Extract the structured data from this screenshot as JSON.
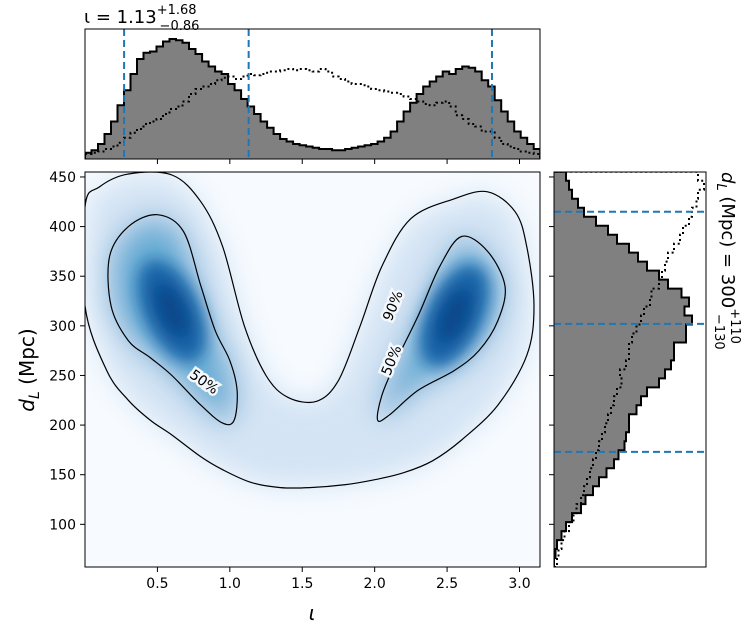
{
  "chart_data": [
    {
      "type": "heatmap",
      "panel": "joint",
      "xlabel": "ι",
      "ylabel": "d_L (Mpc)",
      "xlim": [
        0.0,
        3.14159
      ],
      "ylim": [
        57,
        455
      ],
      "xticks": [
        0.5,
        1.0,
        1.5,
        2.0,
        2.5,
        3.0
      ],
      "xtick_labels": [
        "0.5",
        "1.0",
        "1.5",
        "2.0",
        "2.5",
        "3.0"
      ],
      "yticks": [
        100,
        150,
        200,
        250,
        300,
        350,
        400,
        450
      ],
      "ytick_labels": [
        "100",
        "150",
        "200",
        "250",
        "300",
        "350",
        "400",
        "450"
      ],
      "colormap": "Blues",
      "density_peaks": [
        {
          "iota": 0.6,
          "dL": 315
        },
        {
          "iota": 2.55,
          "dL": 310
        }
      ],
      "contours": [
        {
          "level": "50%",
          "label": "50%",
          "region": "left",
          "points": [
            [
              0.17,
              370
            ],
            [
              0.3,
              400
            ],
            [
              0.5,
              412
            ],
            [
              0.68,
              395
            ],
            [
              0.8,
              340
            ],
            [
              0.9,
              295
            ],
            [
              1.0,
              265
            ],
            [
              1.05,
              235
            ],
            [
              1.03,
              205
            ],
            [
              0.95,
              202
            ],
            [
              0.8,
              220
            ],
            [
              0.6,
              250
            ],
            [
              0.45,
              268
            ],
            [
              0.3,
              285
            ],
            [
              0.18,
              320
            ]
          ]
        },
        {
          "level": "50%",
          "label": "50%",
          "region": "right",
          "points": [
            [
              2.02,
              205
            ],
            [
              2.1,
              210
            ],
            [
              2.3,
              235
            ],
            [
              2.55,
              255
            ],
            [
              2.72,
              275
            ],
            [
              2.85,
              305
            ],
            [
              2.9,
              340
            ],
            [
              2.78,
              375
            ],
            [
              2.6,
              390
            ],
            [
              2.45,
              360
            ],
            [
              2.3,
              310
            ],
            [
              2.15,
              265
            ],
            [
              2.05,
              230
            ]
          ]
        },
        {
          "level": "90%",
          "label": "90%",
          "region": "outer",
          "points": [
            [
              0.0,
              320
            ],
            [
              0.0,
              420
            ],
            [
              0.1,
              440
            ],
            [
              0.3,
              453
            ],
            [
              0.6,
              452
            ],
            [
              0.8,
              425
            ],
            [
              0.95,
              380
            ],
            [
              1.1,
              300
            ],
            [
              1.25,
              250
            ],
            [
              1.4,
              228
            ],
            [
              1.6,
              224
            ],
            [
              1.75,
              245
            ],
            [
              1.9,
              300
            ],
            [
              2.05,
              360
            ],
            [
              2.25,
              408
            ],
            [
              2.55,
              428
            ],
            [
              2.78,
              435
            ],
            [
              2.97,
              415
            ],
            [
              3.05,
              380
            ],
            [
              3.1,
              320
            ],
            [
              3.05,
              270
            ],
            [
              2.85,
              220
            ],
            [
              2.6,
              185
            ],
            [
              2.4,
              164
            ],
            [
              2.2,
              152
            ],
            [
              2.0,
              145
            ],
            [
              1.8,
              140
            ],
            [
              1.55,
              137
            ],
            [
              1.35,
              137
            ],
            [
              1.15,
              142
            ],
            [
              0.95,
              155
            ],
            [
              0.8,
              168
            ],
            [
              0.6,
              190
            ],
            [
              0.45,
              205
            ],
            [
              0.3,
              225
            ],
            [
              0.15,
              255
            ]
          ]
        }
      ]
    },
    {
      "type": "bar",
      "panel": "top-marginal-histogram",
      "title": "ι = 1.13^{+1.68}_{-0.86}",
      "xlim": [
        0.0,
        3.14159
      ],
      "bin_edges_start": 0.0,
      "bin_width": 0.0449,
      "series": [
        {
          "style": "filled-gray",
          "values": [
            0.05,
            0.07,
            0.12,
            0.2,
            0.3,
            0.43,
            0.55,
            0.68,
            0.8,
            0.85,
            0.86,
            0.9,
            0.94,
            0.96,
            0.95,
            0.93,
            0.88,
            0.84,
            0.78,
            0.74,
            0.7,
            0.68,
            0.6,
            0.55,
            0.48,
            0.42,
            0.36,
            0.3,
            0.25,
            0.2,
            0.16,
            0.14,
            0.12,
            0.11,
            0.1,
            0.09,
            0.08,
            0.08,
            0.07,
            0.07,
            0.08,
            0.09,
            0.1,
            0.11,
            0.12,
            0.14,
            0.17,
            0.22,
            0.3,
            0.38,
            0.45,
            0.52,
            0.58,
            0.62,
            0.66,
            0.7,
            0.68,
            0.72,
            0.74,
            0.73,
            0.7,
            0.63,
            0.58,
            0.47,
            0.38,
            0.3,
            0.22,
            0.17,
            0.12,
            0.08
          ]
        },
        {
          "style": "dotted-outline",
          "values": [
            0.04,
            0.05,
            0.06,
            0.08,
            0.1,
            0.13,
            0.17,
            0.21,
            0.24,
            0.28,
            0.3,
            0.32,
            0.36,
            0.4,
            0.42,
            0.46,
            0.52,
            0.56,
            0.58,
            0.6,
            0.63,
            0.65,
            0.66,
            0.64,
            0.66,
            0.68,
            0.67,
            0.68,
            0.7,
            0.7,
            0.71,
            0.72,
            0.71,
            0.72,
            0.71,
            0.7,
            0.72,
            0.7,
            0.66,
            0.64,
            0.62,
            0.6,
            0.6,
            0.58,
            0.56,
            0.55,
            0.54,
            0.53,
            0.52,
            0.5,
            0.48,
            0.46,
            0.44,
            0.43,
            0.45,
            0.46,
            0.42,
            0.35,
            0.32,
            0.28,
            0.26,
            0.22,
            0.22,
            0.17,
            0.12,
            0.1,
            0.08,
            0.06,
            0.05,
            0.04
          ]
        }
      ],
      "quantile_lines": [
        0.27,
        1.13,
        2.81
      ]
    },
    {
      "type": "bar",
      "panel": "right-marginal-histogram",
      "title": "d_L (Mpc) = 300^{+110}_{-130}",
      "ylim": [
        57,
        455
      ],
      "bin_edges_start": 57,
      "bin_width": 9.05,
      "series": [
        {
          "style": "filled-gray",
          "values": [
            0.0,
            0.01,
            0.02,
            0.05,
            0.08,
            0.12,
            0.18,
            0.21,
            0.26,
            0.3,
            0.35,
            0.4,
            0.43,
            0.47,
            0.48,
            0.5,
            0.5,
            0.55,
            0.58,
            0.62,
            0.7,
            0.74,
            0.78,
            0.8,
            0.8,
            0.88,
            0.88,
            0.92,
            0.87,
            0.9,
            0.85,
            0.76,
            0.7,
            0.62,
            0.56,
            0.5,
            0.42,
            0.36,
            0.28,
            0.2,
            0.16,
            0.12,
            0.1,
            0.08
          ]
        },
        {
          "style": "dotted-outline",
          "values": [
            0.02,
            0.03,
            0.05,
            0.07,
            0.1,
            0.13,
            0.15,
            0.18,
            0.2,
            0.22,
            0.24,
            0.26,
            0.28,
            0.3,
            0.32,
            0.34,
            0.36,
            0.38,
            0.4,
            0.42,
            0.45,
            0.44,
            0.48,
            0.5,
            0.5,
            0.52,
            0.55,
            0.58,
            0.6,
            0.64,
            0.65,
            0.7,
            0.72,
            0.74,
            0.76,
            0.8,
            0.84,
            0.86,
            0.9,
            0.92,
            0.95,
            0.96,
            1.0,
            0.96
          ]
        }
      ],
      "quantile_lines": [
        173,
        302,
        415
      ]
    }
  ]
}
